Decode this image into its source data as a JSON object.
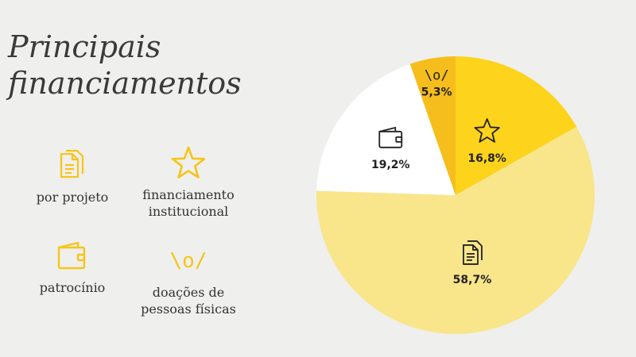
{
  "title_line1": "Principais",
  "title_line2": "financiamentos",
  "legend": [
    {
      "icon": "documents-icon",
      "label": "por projeto"
    },
    {
      "icon": "star-icon",
      "label_line1": "financiamento",
      "label_line2": "institucional"
    },
    {
      "icon": "wallet-icon",
      "label": "patrocínio"
    },
    {
      "icon": "cheering-person-icon",
      "glyph": "\\o/",
      "label_line1": "doações de",
      "label_line2": "pessoas físicas"
    }
  ],
  "colors": {
    "background": "#efefed",
    "por_projeto": "#f9e58a",
    "institucional": "#fdd31c",
    "patrocinio": "#ffffff",
    "doacoes": "#f6be1c",
    "icon_yellow": "#f5c518"
  },
  "chart_data": {
    "type": "pie",
    "title": "Principais financiamentos",
    "start_angle_deg": 0,
    "direction": "clockwise",
    "slices": [
      {
        "name": "financiamento institucional",
        "value": 16.8,
        "label": "16,8%",
        "icon": "star-icon",
        "color": "#fdd31c"
      },
      {
        "name": "por projeto",
        "value": 58.7,
        "label": "58,7%",
        "icon": "documents-icon",
        "color": "#f9e58a"
      },
      {
        "name": "patrocínio",
        "value": 19.2,
        "label": "19,2%",
        "icon": "wallet-icon",
        "color": "#ffffff"
      },
      {
        "name": "doações de pessoas físicas",
        "value": 5.3,
        "label": "5,3%",
        "icon": "cheering-person-icon",
        "glyph": "\\o/",
        "color": "#f6be1c"
      }
    ]
  }
}
